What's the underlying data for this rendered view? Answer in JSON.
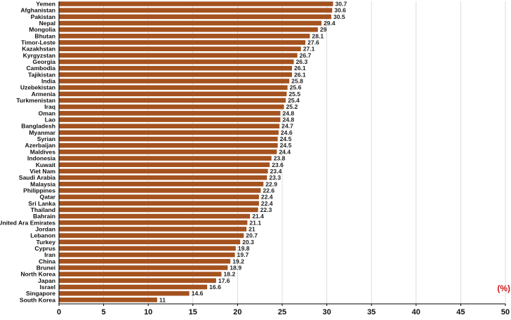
{
  "chart_data": {
    "type": "bar",
    "orientation": "horizontal",
    "categories": [
      "Yemen",
      "Afghanistan",
      "Pakistan",
      "Nepal",
      "Mongolia",
      "Bhutan",
      "Timor-Leste",
      "Kazakhstan",
      "Kyrgyzstan",
      "Georgia",
      "Cambodia",
      "Tajikistan",
      "India",
      "Uzebekistan",
      "Armenia",
      "Turkmenistan",
      "Iraq",
      "Oman",
      "Lao",
      "Bangladesh",
      "Myanmar",
      "Syrian",
      "Azerbaijan",
      "Maldives",
      "Indonesia",
      "Kuwait",
      "Viet Nam",
      "Saudi Arabia",
      "Malaysia",
      "Philippines",
      "Qatar",
      "Sri Lanka",
      "Thailand",
      "Bahrain",
      "United Ara Emirates",
      "Jordan",
      "Lebanon",
      "Turkey",
      "Cyprus",
      "Iran",
      "China",
      "Brunei",
      "North Korea",
      "Japan",
      "Israel",
      "Singapore",
      "South Korea"
    ],
    "values": [
      30.7,
      30.6,
      30.5,
      29.4,
      29,
      28.1,
      27.6,
      27.1,
      26.7,
      26.3,
      26.1,
      26.1,
      25.8,
      25.6,
      25.5,
      25.4,
      25.2,
      24.8,
      24.8,
      24.7,
      24.6,
      24.5,
      24.5,
      24.4,
      23.8,
      23.6,
      23.4,
      23.3,
      22.9,
      22.6,
      22.4,
      22.4,
      22.3,
      21.4,
      21.1,
      21,
      20.7,
      20.3,
      19.8,
      19.7,
      19.2,
      18.9,
      18.2,
      17.6,
      16.6,
      14.6,
      11
    ],
    "value_labels": [
      "30.7",
      "30.6",
      "30.5",
      "29.4",
      "29",
      "28.1",
      "27.6",
      "27.1",
      "26.7",
      "26.3",
      "26.1",
      "26.1",
      "25.8",
      "25.6",
      "25.5",
      "25.4",
      "25.2",
      "24.8",
      "24.8",
      "24.7",
      "24.6",
      "24.5",
      "24.5",
      "24.4",
      "23.8",
      "23.6",
      "23.4",
      "23.3",
      "22.9",
      "22.6",
      "22.4",
      "22.4",
      "22.3",
      "21.4",
      "21.1",
      "21",
      "20.7",
      "20.3",
      "19.8",
      "19.7",
      "19.2",
      "18.9",
      "18.2",
      "17.6",
      "16.6",
      "14.6",
      "11"
    ],
    "xlim": [
      0,
      50
    ],
    "x_ticks": [
      0,
      5,
      10,
      15,
      20,
      25,
      30,
      35,
      40,
      45,
      50
    ],
    "x_tick_labels": [
      "0",
      "5",
      "10",
      "15",
      "20",
      "25",
      "30",
      "35",
      "40",
      "45",
      "50"
    ],
    "unit_label": "(%)",
    "grid": "vertical",
    "bar_color": "#a4521f",
    "grid_color": "#d4d4d4",
    "unit_color": "#d01818"
  }
}
